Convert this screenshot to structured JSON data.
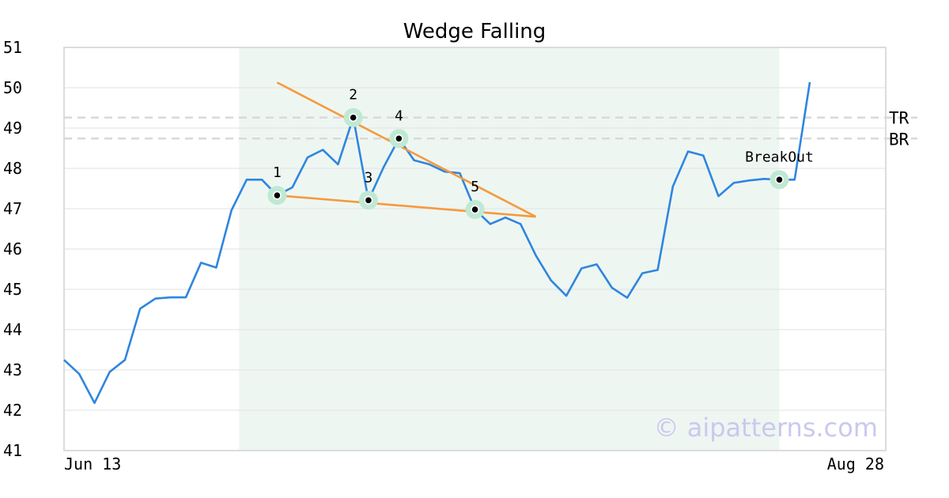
{
  "chart_data": {
    "type": "line",
    "title": "Wedge Falling",
    "xlabel": "",
    "ylabel": "",
    "ylim": [
      41,
      51
    ],
    "yticks": [
      41,
      42,
      43,
      44,
      45,
      46,
      47,
      48,
      49,
      50,
      51
    ],
    "xtick_labels": [
      "Jun 13",
      "Aug 28"
    ],
    "grid": true,
    "series": [
      {
        "color": "#2e86de",
        "values": [
          43.25,
          42.9,
          42.18,
          42.95,
          43.25,
          44.52,
          44.77,
          44.8,
          44.8,
          45.66,
          45.54,
          46.96,
          47.72,
          47.72,
          47.33,
          47.53,
          48.27,
          48.46,
          48.1,
          49.26,
          47.21,
          48.03,
          48.74,
          48.2,
          48.1,
          47.92,
          47.88,
          46.98,
          46.62,
          46.78,
          46.62,
          45.84,
          45.22,
          44.84,
          45.52,
          45.62,
          45.04,
          44.79,
          45.4,
          45.48,
          47.55,
          48.42,
          48.32,
          47.31,
          47.64,
          47.7,
          47.74,
          47.72,
          47.72,
          50.14
        ]
      }
    ],
    "highlight_range": {
      "start_index": 12,
      "end_index": 47,
      "color": "#eef6f2"
    },
    "wedge_lines": [
      {
        "color": "#f59a3c",
        "from": {
          "index": 14.0,
          "value": 50.13
        },
        "to": {
          "index": 31.0,
          "value": 46.8
        }
      },
      {
        "color": "#f59a3c",
        "from": {
          "index": 14.0,
          "value": 47.33
        },
        "to": {
          "index": 31.0,
          "value": 46.8
        }
      }
    ],
    "pattern_points": [
      {
        "label": "1",
        "index": 14,
        "value": 47.33
      },
      {
        "label": "2",
        "index": 19,
        "value": 49.26
      },
      {
        "label": "3",
        "index": 20,
        "value": 47.21
      },
      {
        "label": "4",
        "index": 22,
        "value": 48.74
      },
      {
        "label": "5",
        "index": 27,
        "value": 46.98
      },
      {
        "label": "BreakOut",
        "index": 47,
        "value": 47.72
      }
    ],
    "reference_lines": [
      {
        "label": "TR",
        "value": 49.26
      },
      {
        "label": "BR",
        "value": 48.74
      }
    ]
  },
  "watermark": "© aipatterns.com",
  "colors": {
    "line": "#2e86de",
    "wedge": "#f59a3c",
    "point_halo": "#bfe9d3",
    "highlight": "#eef6f2",
    "grid": "#e2e2e2",
    "refline": "#d9d9d9"
  }
}
